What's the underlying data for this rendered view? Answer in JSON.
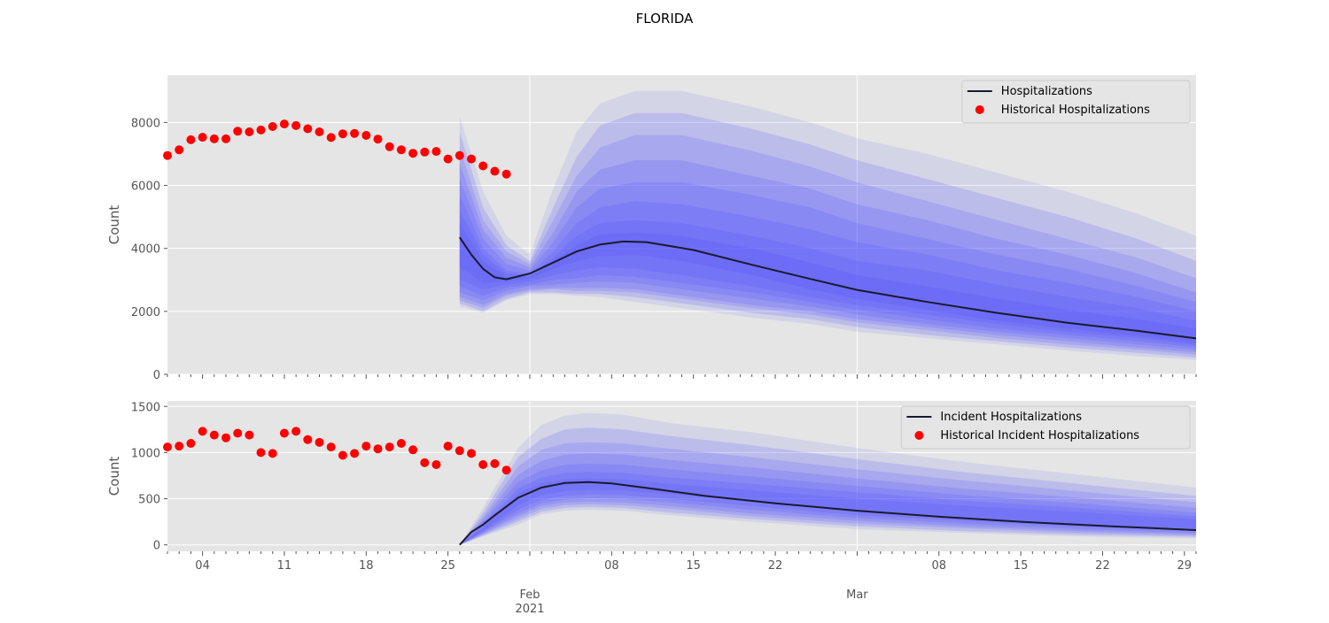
{
  "figure": {
    "title": "FLORIDA"
  },
  "x_axis": {
    "day_ticks": [
      "04",
      "11",
      "18",
      "25",
      "08",
      "15",
      "22",
      "08",
      "15",
      "22",
      "29"
    ],
    "month_ticks": [
      "Feb",
      "Mar"
    ],
    "year_label": "2021"
  },
  "chart_data": [
    {
      "type": "line",
      "panel": "top",
      "ylabel": "Count",
      "ylim": [
        0,
        9500
      ],
      "yticks": [
        "0",
        "2000",
        "4000",
        "6000",
        "8000"
      ],
      "grid": true,
      "legend_position": "top-right",
      "legend": {
        "line": "Hospitalizations",
        "points": "Historical Hospitalizations"
      },
      "historical": {
        "x": [
          "2021-01-01",
          "2021-01-02",
          "2021-01-03",
          "2021-01-04",
          "2021-01-05",
          "2021-01-06",
          "2021-01-07",
          "2021-01-08",
          "2021-01-09",
          "2021-01-10",
          "2021-01-11",
          "2021-01-12",
          "2021-01-13",
          "2021-01-14",
          "2021-01-15",
          "2021-01-16",
          "2021-01-17",
          "2021-01-18",
          "2021-01-19",
          "2021-01-20",
          "2021-01-21",
          "2021-01-22",
          "2021-01-23",
          "2021-01-24",
          "2021-01-25",
          "2021-01-26",
          "2021-01-27",
          "2021-01-28",
          "2021-01-29",
          "2021-01-30",
          "2021-01-31"
        ],
        "y": [
          6950,
          7130,
          7450,
          7530,
          7480,
          7480,
          7720,
          7700,
          7760,
          7870,
          7950,
          7900,
          7800,
          7700,
          7520,
          7640,
          7650,
          7590,
          7470,
          7230,
          7130,
          7020,
          7060,
          7080,
          6840,
          6950,
          6840,
          6620,
          6450,
          6360,
          null
        ]
      },
      "median": {
        "x": [
          "2021-01-26",
          "2021-01-27",
          "2021-01-28",
          "2021-01-29",
          "2021-01-30",
          "2021-02-01",
          "2021-02-03",
          "2021-02-05",
          "2021-02-07",
          "2021-02-09",
          "2021-02-11",
          "2021-02-15",
          "2021-02-20",
          "2021-02-25",
          "2021-03-01",
          "2021-03-07",
          "2021-03-13",
          "2021-03-19",
          "2021-03-25",
          "2021-03-30"
        ],
        "y": [
          4350,
          3800,
          3350,
          3080,
          3020,
          3200,
          3550,
          3900,
          4120,
          4220,
          4200,
          3950,
          3480,
          3030,
          2680,
          2300,
          1950,
          1640,
          1380,
          1140
        ]
      },
      "band_x": [
        "2021-01-26",
        "2021-01-28",
        "2021-01-30",
        "2021-02-01",
        "2021-02-03",
        "2021-02-05",
        "2021-02-07",
        "2021-02-10",
        "2021-02-14",
        "2021-02-20",
        "2021-02-25",
        "2021-03-01",
        "2021-03-07",
        "2021-03-13",
        "2021-03-19",
        "2021-03-25",
        "2021-03-30"
      ],
      "bands": [
        {
          "upper": [
            8200,
            5800,
            4400,
            3800,
            5900,
            7700,
            8600,
            9000,
            9000,
            8500,
            8000,
            7500,
            7000,
            6400,
            5800,
            5100,
            4400
          ],
          "lower": [
            2150,
            1950,
            2350,
            2550,
            2550,
            2500,
            2450,
            2300,
            2100,
            1800,
            1600,
            1350,
            1150,
            950,
            750,
            580,
            450
          ]
        },
        {
          "upper": [
            7700,
            5300,
            4100,
            3600,
            5300,
            6900,
            7900,
            8300,
            8300,
            7800,
            7300,
            6800,
            6200,
            5600,
            5000,
            4300,
            3600
          ],
          "lower": [
            2250,
            2000,
            2400,
            2600,
            2600,
            2550,
            2550,
            2450,
            2250,
            1950,
            1750,
            1500,
            1250,
            1050,
            850,
            680,
            530
          ]
        },
        {
          "upper": [
            7200,
            4900,
            3900,
            3500,
            4900,
            6300,
            7200,
            7600,
            7600,
            7100,
            6600,
            6100,
            5500,
            4900,
            4300,
            3700,
            3050
          ],
          "lower": [
            2350,
            2100,
            2500,
            2650,
            2700,
            2650,
            2650,
            2600,
            2400,
            2100,
            1900,
            1650,
            1400,
            1150,
            950,
            780,
            620
          ]
        },
        {
          "upper": [
            6700,
            4600,
            3700,
            3400,
            4500,
            5800,
            6500,
            6800,
            6800,
            6300,
            5900,
            5400,
            4900,
            4300,
            3800,
            3200,
            2600
          ],
          "lower": [
            2450,
            2200,
            2550,
            2700,
            2750,
            2750,
            2750,
            2700,
            2500,
            2200,
            2000,
            1750,
            1500,
            1250,
            1050,
            850,
            700
          ]
        },
        {
          "upper": [
            6200,
            4300,
            3500,
            3300,
            4200,
            5300,
            5900,
            6100,
            6100,
            5700,
            5300,
            4800,
            4300,
            3800,
            3350,
            2800,
            2300
          ],
          "lower": [
            2600,
            2350,
            2650,
            2800,
            2850,
            2900,
            2950,
            2900,
            2700,
            2400,
            2150,
            1900,
            1600,
            1350,
            1150,
            950,
            780
          ]
        },
        {
          "upper": [
            5700,
            4000,
            3300,
            3200,
            3900,
            4800,
            5300,
            5500,
            5400,
            5000,
            4600,
            4200,
            3800,
            3300,
            2900,
            2450,
            2000
          ],
          "lower": [
            2800,
            2500,
            2750,
            2850,
            3000,
            3050,
            3150,
            3100,
            2900,
            2600,
            2300,
            2050,
            1750,
            1450,
            1250,
            1050,
            860
          ]
        },
        {
          "upper": [
            5200,
            3800,
            3200,
            3150,
            3700,
            4400,
            4800,
            4900,
            4800,
            4400,
            4000,
            3600,
            3300,
            2850,
            2450,
            2100,
            1700
          ],
          "lower": [
            3000,
            2700,
            2850,
            2950,
            3150,
            3300,
            3400,
            3350,
            3150,
            2800,
            2450,
            2200,
            1900,
            1600,
            1350,
            1150,
            930
          ]
        },
        {
          "upper": [
            4800,
            3600,
            3100,
            3100,
            3600,
            4100,
            4450,
            4500,
            4400,
            4000,
            3550,
            3150,
            2800,
            2400,
            2050,
            1750,
            1450
          ],
          "lower": [
            3400,
            2900,
            2950,
            3050,
            3350,
            3600,
            3750,
            3800,
            3600,
            3150,
            2700,
            2400,
            2050,
            1700,
            1450,
            1220,
            1000
          ]
        }
      ]
    },
    {
      "type": "line",
      "panel": "bottom",
      "ylabel": "Count",
      "ylim": [
        -70,
        1560
      ],
      "yticks": [
        "0",
        "500",
        "1000",
        "1500"
      ],
      "grid": true,
      "legend_position": "top-right",
      "legend": {
        "line": "Incident Hospitalizations",
        "points": "Historical Incident Hospitalizations"
      },
      "historical": {
        "x": [
          "2021-01-01",
          "2021-01-02",
          "2021-01-03",
          "2021-01-04",
          "2021-01-05",
          "2021-01-06",
          "2021-01-07",
          "2021-01-08",
          "2021-01-09",
          "2021-01-10",
          "2021-01-11",
          "2021-01-12",
          "2021-01-13",
          "2021-01-14",
          "2021-01-15",
          "2021-01-16",
          "2021-01-17",
          "2021-01-18",
          "2021-01-19",
          "2021-01-20",
          "2021-01-21",
          "2021-01-22",
          "2021-01-23",
          "2021-01-24",
          "2021-01-25",
          "2021-01-26",
          "2021-01-27",
          "2021-01-28",
          "2021-01-29",
          "2021-01-30",
          "2021-01-31"
        ],
        "y": [
          1060,
          1070,
          1100,
          1230,
          1190,
          1160,
          1210,
          1190,
          1000,
          990,
          1210,
          1230,
          1140,
          1110,
          1060,
          970,
          990,
          1070,
          1040,
          1060,
          1100,
          1030,
          890,
          870,
          1070,
          1020,
          990,
          870,
          880,
          810,
          null
        ]
      },
      "median": {
        "x": [
          "2021-01-26",
          "2021-01-27",
          "2021-01-28",
          "2021-01-29",
          "2021-01-31",
          "2021-02-02",
          "2021-02-04",
          "2021-02-06",
          "2021-02-08",
          "2021-02-12",
          "2021-02-16",
          "2021-02-22",
          "2021-03-01",
          "2021-03-08",
          "2021-03-15",
          "2021-03-22",
          "2021-03-30"
        ],
        "y": [
          0,
          140,
          220,
          320,
          510,
          620,
          670,
          680,
          665,
          600,
          530,
          450,
          370,
          305,
          250,
          205,
          160
        ]
      },
      "band_x": [
        "2021-01-26",
        "2021-01-28",
        "2021-01-31",
        "2021-02-02",
        "2021-02-04",
        "2021-02-06",
        "2021-02-09",
        "2021-02-13",
        "2021-02-20",
        "2021-03-01",
        "2021-03-10",
        "2021-03-20",
        "2021-03-30"
      ],
      "bands": [
        {
          "upper": [
            0,
            400,
            1050,
            1300,
            1400,
            1430,
            1410,
            1320,
            1220,
            1050,
            900,
            760,
            620
          ],
          "lower": [
            0,
            90,
            220,
            330,
            370,
            380,
            370,
            320,
            250,
            170,
            130,
            90,
            70
          ]
        },
        {
          "upper": [
            0,
            350,
            950,
            1150,
            1250,
            1270,
            1250,
            1180,
            1080,
            930,
            790,
            660,
            530
          ],
          "lower": [
            0,
            100,
            250,
            360,
            400,
            410,
            400,
            350,
            280,
            200,
            150,
            110,
            85
          ]
        },
        {
          "upper": [
            0,
            310,
            850,
            1030,
            1100,
            1110,
            1100,
            1040,
            950,
            820,
            700,
            580,
            460
          ],
          "lower": [
            0,
            110,
            280,
            390,
            430,
            440,
            430,
            390,
            310,
            230,
            180,
            130,
            100
          ]
        },
        {
          "upper": [
            0,
            280,
            760,
            910,
            980,
            990,
            980,
            920,
            840,
            720,
            610,
            510,
            400
          ],
          "lower": [
            0,
            120,
            310,
            420,
            460,
            470,
            460,
            420,
            340,
            260,
            200,
            150,
            115
          ]
        },
        {
          "upper": [
            0,
            250,
            680,
            810,
            870,
            880,
            870,
            820,
            740,
            640,
            540,
            450,
            350
          ],
          "lower": [
            0,
            130,
            340,
            450,
            490,
            505,
            500,
            460,
            380,
            290,
            230,
            170,
            130
          ]
        },
        {
          "upper": [
            0,
            220,
            610,
            730,
            780,
            790,
            780,
            730,
            660,
            570,
            480,
            400,
            310
          ],
          "lower": [
            0,
            140,
            380,
            490,
            530,
            545,
            540,
            500,
            420,
            320,
            260,
            195,
            150
          ]
        },
        {
          "upper": [
            0,
            190,
            560,
            670,
            710,
            720,
            710,
            660,
            590,
            500,
            425,
            355,
            275
          ],
          "lower": [
            0,
            150,
            430,
            540,
            580,
            595,
            590,
            550,
            470,
            360,
            290,
            225,
            175
          ]
        }
      ]
    }
  ]
}
